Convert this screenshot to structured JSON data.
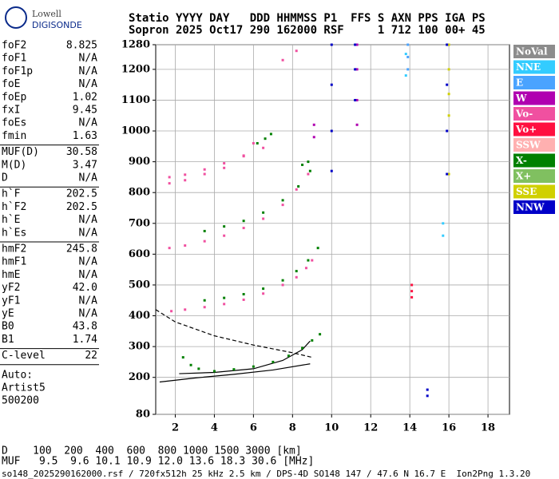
{
  "logo": {
    "top": "Lowell",
    "bottom": "DIGISONDE"
  },
  "header": {
    "line1": "Statio YYYY DAY   DDD HHMMSS P1  FFS S AXN PPS IGA PS",
    "line2": "Sopron 2025 Oct17 290 162000 RSF     1 712 100 00+ 45"
  },
  "panel": [
    [
      [
        "foF2",
        "8.825"
      ],
      [
        "foF1",
        "N/A"
      ],
      [
        "foF1p",
        "N/A"
      ],
      [
        "foE",
        "N/A"
      ],
      [
        "foEp",
        "1.02"
      ],
      [
        "fxI",
        "9.45"
      ],
      [
        "foEs",
        "N/A"
      ],
      [
        "fmin",
        "1.63"
      ]
    ],
    [
      [
        "MUF(D)",
        "30.58"
      ],
      [
        "M(D)",
        "3.47"
      ],
      [
        "D",
        "N/A"
      ]
    ],
    [
      [
        "h`F",
        "202.5"
      ],
      [
        "h`F2",
        "202.5"
      ],
      [
        "h`E",
        "N/A"
      ],
      [
        "h`Es",
        "N/A"
      ]
    ],
    [
      [
        "hmF2",
        "245.8"
      ],
      [
        "hmF1",
        "N/A"
      ],
      [
        "hmE",
        "N/A"
      ],
      [
        "yF2",
        "42.0"
      ],
      [
        "yF1",
        "N/A"
      ],
      [
        "yE",
        "N/A"
      ],
      [
        "B0",
        "43.8"
      ],
      [
        "B1",
        "1.74"
      ]
    ],
    [
      [
        "C-level",
        "22"
      ]
    ]
  ],
  "auto": [
    "Auto:",
    "Artist5",
    "500200"
  ],
  "chart_data": {
    "type": "scatter",
    "xlim": [
      1,
      19.1
    ],
    "xticks": [
      2,
      4,
      6,
      8,
      10,
      12,
      14,
      16,
      18
    ],
    "ylim": [
      80,
      1280
    ],
    "yticks": [
      80,
      200,
      300,
      400,
      500,
      600,
      700,
      800,
      900,
      1000,
      1100,
      1200,
      1280
    ],
    "grid": true,
    "series": [
      {
        "name": "NoVal",
        "color": "#8c8c8c",
        "x": [],
        "y": []
      },
      {
        "name": "NNE",
        "color": "#33ccff",
        "x": [
          13.8,
          13.8,
          15.7,
          15.7
        ],
        "y": [
          1250,
          1180,
          660,
          700
        ]
      },
      {
        "name": "E",
        "color": "#4aa3ff",
        "x": [
          13.9,
          13.9,
          13.9
        ],
        "y": [
          1280,
          1240,
          1200
        ]
      },
      {
        "name": "W",
        "color": "#b000b0",
        "x": [
          11.3,
          11.3,
          11.3,
          11.3,
          9.1,
          9.1
        ],
        "y": [
          1280,
          1200,
          1100,
          1020,
          1020,
          980
        ]
      },
      {
        "name": "Vo-",
        "color": "#f050a0",
        "x": [
          1.8,
          2.5,
          3.5,
          4.5,
          5.5,
          6.5,
          7.5,
          8.2,
          8.7,
          9.0,
          1.7,
          2.5,
          3.5,
          4.5,
          5.5,
          6.5,
          7.5,
          8.2,
          8.8,
          1.7,
          2.5,
          3.5,
          4.5,
          5.5,
          6.5,
          7.5,
          8.2,
          1.7,
          2.5,
          3.5,
          4.5,
          5.5,
          6.0
        ],
        "y": [
          415,
          420,
          428,
          438,
          452,
          472,
          500,
          525,
          555,
          580,
          620,
          628,
          642,
          660,
          685,
          715,
          760,
          810,
          860,
          850,
          858,
          875,
          895,
          918,
          945,
          1230,
          1260,
          830,
          840,
          860,
          880,
          920,
          960
        ]
      },
      {
        "name": "Vo+",
        "color": "#ff1040",
        "x": [
          14.1,
          14.1,
          14.1
        ],
        "y": [
          460,
          480,
          500
        ]
      },
      {
        "name": "SSW",
        "color": "#ffb0b0",
        "x": [],
        "y": []
      },
      {
        "name": "X-",
        "color": "#008000",
        "x": [
          2.4,
          2.8,
          3.2,
          4.0,
          5.0,
          6.0,
          7.0,
          7.8,
          8.5,
          9.0,
          9.4,
          3.5,
          4.5,
          5.5,
          6.5,
          7.5,
          8.2,
          8.8,
          9.3,
          3.5,
          4.5,
          5.5,
          6.5,
          7.5,
          8.3,
          8.9,
          6.2,
          6.6,
          6.9,
          8.5,
          8.8
        ],
        "y": [
          265,
          240,
          228,
          220,
          226,
          235,
          250,
          270,
          295,
          320,
          340,
          450,
          458,
          470,
          488,
          515,
          545,
          580,
          620,
          675,
          690,
          708,
          735,
          775,
          820,
          870,
          960,
          975,
          990,
          890,
          900
        ]
      },
      {
        "name": "X+",
        "color": "#80c060",
        "x": [],
        "y": []
      },
      {
        "name": "SSE",
        "color": "#d0d000",
        "x": [
          16.0,
          16.0,
          16.0,
          16.0,
          16.0
        ],
        "y": [
          1280,
          1200,
          1120,
          1050,
          860
        ]
      },
      {
        "name": "NNW",
        "color": "#0000c8",
        "x": [
          10.0,
          10.0,
          10.0,
          10.0,
          11.2,
          11.2,
          11.2,
          15.9,
          15.9,
          15.9,
          15.9,
          14.9,
          14.9
        ],
        "y": [
          1280,
          1150,
          1000,
          870,
          1280,
          1200,
          1100,
          1280,
          1150,
          1000,
          860,
          160,
          140
        ]
      }
    ],
    "curves": [
      {
        "style": "solid",
        "x": [
          1.2,
          3,
          5,
          7,
          8.9
        ],
        "y": [
          185,
          198,
          210,
          224,
          244
        ]
      },
      {
        "style": "solid",
        "x": [
          2.2,
          4,
          6,
          7.5,
          8.5,
          8.9
        ],
        "y": [
          212,
          216,
          228,
          255,
          290,
          318
        ]
      },
      {
        "style": "dashed",
        "x": [
          1.0,
          2,
          4,
          6,
          8,
          9.0
        ],
        "y": [
          420,
          380,
          335,
          305,
          280,
          265
        ]
      }
    ]
  },
  "bottom": {
    "d_row": "D    100  200  400  600  800 1000 1500 3000 [km]",
    "muf_row": "MUF   9.5  9.6 10.1 10.9 12.0 13.6 18.3 30.6 [MHz]",
    "footer": "so148_2025290162000.rsf / 720fx512h 25 kHz 2.5 km / DPS-4D SO148 147 / 47.6 N 16.7 E  Ion2Png 1.3.20"
  }
}
